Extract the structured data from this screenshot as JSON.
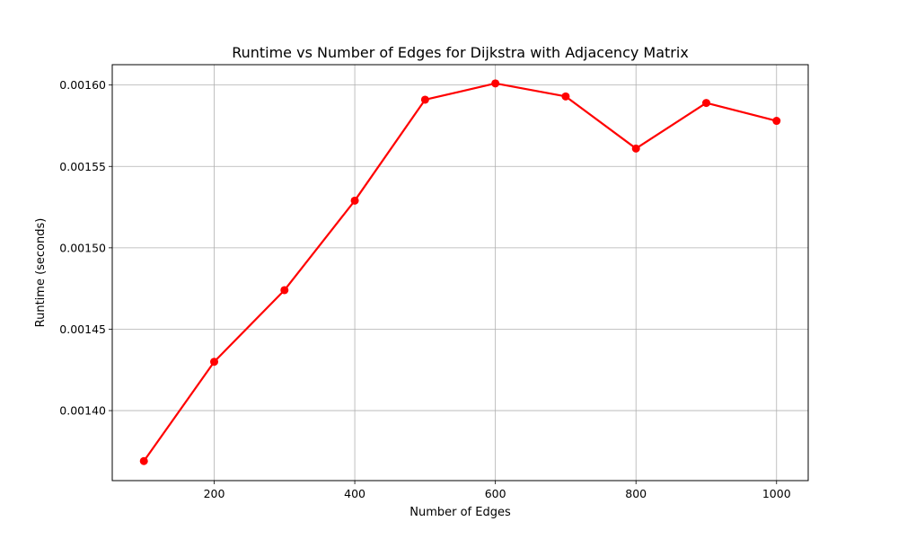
{
  "chart_data": {
    "type": "line",
    "title": "Runtime vs Number of Edges for Dijkstra with Adjacency Matrix",
    "xlabel": "Number of Edges",
    "ylabel": "Runtime (seconds)",
    "x": [
      100,
      200,
      300,
      400,
      500,
      600,
      700,
      800,
      900,
      1000
    ],
    "series": [
      {
        "values": [
          0.001369,
          0.00143,
          0.001474,
          0.001529,
          0.001591,
          0.001601,
          0.001593,
          0.001561,
          0.001589,
          0.001578
        ],
        "color": "#ff0000",
        "marker": "circle"
      }
    ],
    "xlim": [
      55,
      1045
    ],
    "ylim": [
      0.001357,
      0.0016125
    ],
    "xticks": [
      200,
      400,
      600,
      800,
      1000
    ],
    "xtick_labels": [
      "200",
      "400",
      "600",
      "800",
      "1000"
    ],
    "yticks": [
      0.0014,
      0.00145,
      0.0015,
      0.00155,
      0.0016
    ],
    "ytick_labels": [
      "0.00140",
      "0.00145",
      "0.00150",
      "0.00155",
      "0.00160"
    ],
    "grid": true,
    "grid_color": "#b0b0b0"
  }
}
